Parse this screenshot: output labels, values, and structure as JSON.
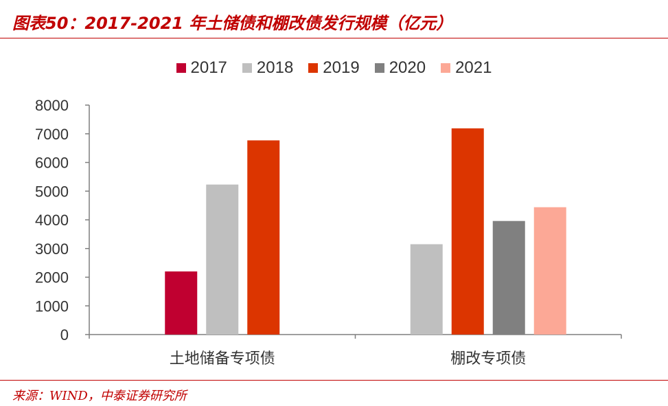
{
  "title": "图表50：2017-2021 年土储债和棚改债发行规模（亿元）",
  "source": "来源：WIND，中泰证券研究所",
  "colors": {
    "accent": "#c00000",
    "2017": "#c00030",
    "2018": "#bfbfbf",
    "2019": "#dc3500",
    "2020": "#808080",
    "2021": "#fca896"
  },
  "chart_data": {
    "type": "bar",
    "title": "2017-2021 年土储债和棚改债发行规模（亿元）",
    "categories": [
      "土地储备专项债",
      "棚改专项债"
    ],
    "series": [
      {
        "name": "2017",
        "color": "#c00030",
        "values": [
          2200,
          null
        ]
      },
      {
        "name": "2018",
        "color": "#bfbfbf",
        "values": [
          5230,
          3150
        ]
      },
      {
        "name": "2019",
        "color": "#dc3500",
        "values": [
          6770,
          7190
        ]
      },
      {
        "name": "2020",
        "color": "#808080",
        "values": [
          null,
          3960
        ]
      },
      {
        "name": "2021",
        "color": "#fca896",
        "values": [
          null,
          4440
        ]
      }
    ],
    "ylim": [
      0,
      8000
    ],
    "yticks": [
      "0",
      "1000",
      "2000",
      "3000",
      "4000",
      "5000",
      "6000",
      "7000",
      "8000"
    ],
    "xlabel": "",
    "ylabel": "",
    "legend": "top-center",
    "grid": false
  }
}
